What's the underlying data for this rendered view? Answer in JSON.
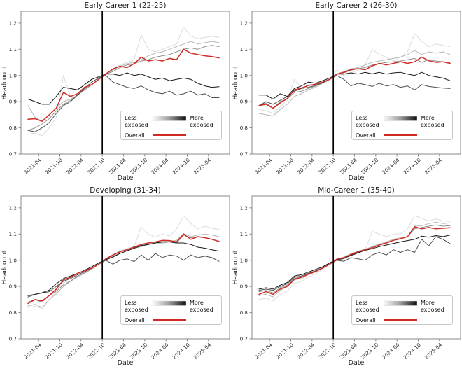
{
  "figure": {
    "background": "#ffffff",
    "description": "2x2 grid of headcount index line charts by AI-exposure quintile and age cohort"
  },
  "axes": {
    "xlabel": "Date",
    "ylabel": "Headcount",
    "yticks": [
      0.7,
      0.8,
      0.9,
      1.0,
      1.1,
      1.2
    ],
    "ylim": [
      0.7,
      1.245
    ],
    "xtick_labels": [
      "2021-04",
      "2021-10",
      "2022-04",
      "2022-10",
      "2023-04",
      "2023-10",
      "2024-04",
      "2024-10",
      "2025-04"
    ],
    "xtick_months": [
      3,
      9,
      15,
      21,
      27,
      33,
      39,
      45,
      51
    ],
    "x_months": [
      0,
      2,
      4,
      6,
      8,
      10,
      12,
      14,
      16,
      18,
      20,
      22,
      24,
      26,
      28,
      30,
      32,
      34,
      36,
      38,
      40,
      42,
      44,
      46,
      48,
      50,
      52,
      54
    ],
    "x_start": "2021-01",
    "x_end": "2025-07",
    "total_months": 54,
    "vline_month": 21,
    "vline_date": "2022-10",
    "grid": false,
    "legend_position": "lower right",
    "spine_color": "#8a8a8a",
    "tick_label_color": "#262626",
    "vline_color": "#000000"
  },
  "legend": {
    "less_line1": "Less",
    "less_line2": "exposed",
    "more_line1": "More",
    "more_line2": "exposed",
    "overall_label": "Overall",
    "gradient_from": "#fbfbfb",
    "gradient_mid": "#9a9a9a",
    "gradient_to": "#0d0d0d",
    "overall_color": "#cf2b24",
    "box_border": "#c9c9c9"
  },
  "chart_data": [
    {
      "type": "line",
      "id": "early-career-1",
      "title": "Early Career 1 (22-25)",
      "xlabel": "Date",
      "ylabel": "Headcount",
      "series": [
        {
          "id": "q1-least-exposed",
          "name": "Q1 least exposed",
          "color": "#dcdcdc",
          "width": 1,
          "values": [
            0.775,
            0.78,
            0.77,
            0.8,
            0.84,
            1.0,
            0.92,
            0.93,
            0.95,
            0.96,
            0.99,
            1.01,
            1.02,
            1.04,
            1.05,
            1.06,
            1.155,
            1.1,
            1.09,
            1.1,
            1.11,
            1.12,
            1.185,
            1.15,
            1.14,
            1.145,
            1.15,
            1.145
          ]
        },
        {
          "id": "q2",
          "name": "Q2",
          "color": "#b8b8b8",
          "width": 1,
          "values": [
            0.885,
            0.84,
            0.825,
            0.85,
            0.875,
            0.9,
            0.91,
            0.925,
            0.945,
            0.965,
            0.985,
            1.005,
            1.02,
            1.035,
            1.045,
            1.05,
            1.06,
            1.075,
            1.085,
            1.09,
            1.1,
            1.11,
            1.12,
            1.13,
            1.12,
            1.125,
            1.13,
            1.125
          ]
        },
        {
          "id": "q3",
          "name": "Q3",
          "color": "#909090",
          "width": 1,
          "values": [
            0.79,
            0.8,
            0.815,
            0.835,
            0.865,
            0.89,
            0.905,
            0.925,
            0.945,
            0.965,
            0.985,
            1.005,
            1.015,
            1.03,
            1.04,
            1.045,
            1.055,
            1.06,
            1.07,
            1.075,
            1.08,
            1.09,
            1.1,
            1.105,
            1.1,
            1.11,
            1.115,
            1.11
          ]
        },
        {
          "id": "q4",
          "name": "Q4",
          "color": "#4f4f4f",
          "width": 1,
          "values": [
            0.79,
            0.785,
            0.8,
            0.82,
            0.855,
            0.885,
            0.9,
            0.925,
            0.95,
            0.975,
            0.99,
            1.0,
            0.975,
            0.965,
            0.955,
            0.95,
            0.96,
            0.945,
            0.935,
            0.93,
            0.94,
            0.925,
            0.93,
            0.94,
            0.925,
            0.93,
            0.915,
            0.915
          ]
        },
        {
          "id": "q5-most-exposed",
          "name": "Q5 most exposed",
          "color": "#161616",
          "width": 1,
          "values": [
            0.91,
            0.9,
            0.89,
            0.89,
            0.92,
            0.955,
            0.95,
            0.945,
            0.965,
            0.985,
            0.995,
            1.005,
            1.005,
            1.0,
            1.01,
            1.0,
            1.005,
            0.995,
            0.985,
            0.99,
            0.98,
            0.985,
            0.99,
            0.985,
            0.97,
            0.96,
            0.955,
            0.957
          ]
        },
        {
          "id": "overall",
          "name": "Overall",
          "color": "#cf2b24",
          "width": 1.5,
          "values": [
            0.833,
            0.835,
            0.825,
            0.85,
            0.875,
            0.935,
            0.92,
            0.93,
            0.955,
            0.965,
            0.985,
            1.005,
            1.025,
            1.035,
            1.03,
            1.045,
            1.07,
            1.055,
            1.06,
            1.055,
            1.065,
            1.06,
            1.1,
            1.085,
            1.08,
            1.075,
            1.072,
            1.067
          ]
        }
      ]
    },
    {
      "type": "line",
      "id": "early-career-2",
      "title": "Early Career 2 (26-30)",
      "xlabel": "Date",
      "ylabel": "Headcount",
      "series": [
        {
          "id": "q1-least-exposed",
          "name": "Q1 least exposed",
          "color": "#dcdcdc",
          "width": 1,
          "values": [
            0.87,
            0.865,
            0.855,
            0.88,
            0.905,
            0.985,
            0.95,
            0.955,
            0.96,
            0.97,
            0.98,
            1.02,
            1.0,
            1.01,
            1.02,
            1.04,
            1.1,
            1.08,
            1.07,
            1.055,
            1.07,
            1.09,
            1.16,
            1.13,
            1.11,
            1.12,
            1.115,
            1.11
          ]
        },
        {
          "id": "q2",
          "name": "Q2",
          "color": "#b8b8b8",
          "width": 1,
          "values": [
            0.855,
            0.85,
            0.845,
            0.87,
            0.89,
            0.92,
            0.93,
            0.945,
            0.955,
            0.97,
            0.985,
            1.005,
            1.015,
            1.025,
            1.03,
            1.04,
            1.05,
            1.055,
            1.06,
            1.065,
            1.07,
            1.08,
            1.095,
            1.08,
            1.09,
            1.085,
            1.09,
            1.08
          ]
        },
        {
          "id": "q3",
          "name": "Q3",
          "color": "#909090",
          "width": 1,
          "values": [
            0.885,
            0.895,
            0.875,
            0.9,
            0.91,
            0.935,
            0.94,
            0.95,
            0.96,
            0.972,
            0.985,
            1.005,
            1.01,
            1.02,
            1.025,
            1.03,
            1.04,
            1.045,
            1.05,
            1.052,
            1.055,
            1.06,
            1.065,
            1.05,
            1.06,
            1.055,
            1.052,
            1.048
          ]
        },
        {
          "id": "q4",
          "name": "Q4",
          "color": "#4f4f4f",
          "width": 1,
          "values": [
            0.885,
            0.9,
            0.89,
            0.905,
            0.92,
            0.94,
            0.95,
            0.955,
            0.962,
            0.972,
            0.985,
            1.0,
            0.985,
            0.96,
            0.97,
            0.965,
            0.958,
            0.97,
            0.96,
            0.965,
            0.955,
            0.96,
            0.945,
            0.965,
            0.958,
            0.955,
            0.952,
            0.95
          ]
        },
        {
          "id": "q5-most-exposed",
          "name": "Q5 most exposed",
          "color": "#161616",
          "width": 1,
          "values": [
            0.925,
            0.925,
            0.91,
            0.93,
            0.92,
            0.95,
            0.96,
            0.975,
            0.97,
            0.98,
            0.99,
            1.005,
            1.005,
            1.01,
            1.005,
            1.012,
            1.006,
            1.012,
            1.005,
            1.01,
            1.012,
            1.005,
            1.0,
            1.012,
            1.0,
            0.995,
            0.99,
            0.98
          ]
        },
        {
          "id": "overall",
          "name": "Overall",
          "color": "#cf2b24",
          "width": 1.5,
          "values": [
            0.885,
            0.89,
            0.875,
            0.895,
            0.912,
            0.945,
            0.952,
            0.962,
            0.966,
            0.975,
            0.985,
            1.005,
            1.012,
            1.022,
            1.026,
            1.022,
            1.036,
            1.046,
            1.04,
            1.046,
            1.052,
            1.046,
            1.052,
            1.07,
            1.056,
            1.05,
            1.052,
            1.046
          ]
        }
      ]
    },
    {
      "type": "line",
      "id": "developing",
      "title": "Developing (31-34)",
      "xlabel": "Date",
      "ylabel": "Headcount",
      "series": [
        {
          "id": "q1-least-exposed",
          "name": "Q1 least exposed",
          "color": "#dcdcdc",
          "width": 1,
          "values": [
            0.82,
            0.825,
            0.815,
            0.85,
            0.88,
            0.915,
            0.92,
            0.94,
            0.955,
            0.97,
            0.985,
            1.008,
            1.02,
            1.032,
            1.045,
            1.052,
            1.128,
            1.1,
            1.088,
            1.1,
            1.092,
            1.12,
            1.17,
            1.14,
            1.12,
            1.13,
            1.122,
            1.118
          ]
        },
        {
          "id": "q2",
          "name": "Q2",
          "color": "#b8b8b8",
          "width": 1,
          "values": [
            0.825,
            0.832,
            0.82,
            0.85,
            0.872,
            0.9,
            0.92,
            0.936,
            0.95,
            0.966,
            0.985,
            1.006,
            1.02,
            1.035,
            1.042,
            1.052,
            1.058,
            1.062,
            1.066,
            1.072,
            1.072,
            1.076,
            1.102,
            1.09,
            1.096,
            1.1,
            1.096,
            1.09
          ]
        },
        {
          "id": "q3",
          "name": "Q3",
          "color": "#909090",
          "width": 1,
          "values": [
            0.84,
            0.85,
            0.84,
            0.865,
            0.882,
            0.906,
            0.92,
            0.94,
            0.952,
            0.966,
            0.985,
            1.002,
            1.016,
            1.026,
            1.036,
            1.046,
            1.052,
            1.06,
            1.066,
            1.066,
            1.07,
            1.066,
            1.096,
            1.086,
            1.09,
            1.086,
            1.08,
            1.072
          ]
        },
        {
          "id": "q4",
          "name": "Q4",
          "color": "#4f4f4f",
          "width": 1,
          "values": [
            0.86,
            0.87,
            0.875,
            0.88,
            0.9,
            0.92,
            0.93,
            0.945,
            0.956,
            0.97,
            0.985,
            1.0,
            0.985,
            1.0,
            1.005,
            0.995,
            1.02,
            1.0,
            1.026,
            1.01,
            1.02,
            1.016,
            1.0,
            1.02,
            1.01,
            1.016,
            1.01,
            0.996
          ]
        },
        {
          "id": "q5-most-exposed",
          "name": "Q5 most exposed",
          "color": "#161616",
          "width": 1,
          "values": [
            0.865,
            0.87,
            0.876,
            0.886,
            0.91,
            0.93,
            0.94,
            0.95,
            0.962,
            0.975,
            0.99,
            1.002,
            1.012,
            1.026,
            1.036,
            1.046,
            1.056,
            1.06,
            1.066,
            1.07,
            1.07,
            1.066,
            1.066,
            1.06,
            1.05,
            1.046,
            1.04,
            1.035
          ]
        },
        {
          "id": "overall",
          "name": "Overall",
          "color": "#cf2b24",
          "width": 1.5,
          "values": [
            0.835,
            0.85,
            0.845,
            0.865,
            0.89,
            0.925,
            0.935,
            0.95,
            0.96,
            0.97,
            0.985,
            1.005,
            1.02,
            1.032,
            1.04,
            1.05,
            1.06,
            1.066,
            1.07,
            1.076,
            1.075,
            1.07,
            1.1,
            1.08,
            1.09,
            1.086,
            1.08,
            1.072
          ]
        }
      ]
    },
    {
      "type": "line",
      "id": "mid-career-1",
      "title": "Mid-Career 1 (35-40)",
      "xlabel": "Date",
      "ylabel": "Headcount",
      "series": [
        {
          "id": "q1-least-exposed",
          "name": "Q1 least exposed",
          "color": "#dcdcdc",
          "width": 1,
          "values": [
            0.85,
            0.855,
            0.845,
            0.87,
            0.882,
            0.912,
            0.92,
            0.936,
            0.95,
            0.965,
            0.985,
            1.005,
            1.01,
            1.02,
            1.032,
            1.04,
            1.11,
            1.1,
            1.09,
            1.1,
            1.1,
            1.12,
            1.17,
            1.16,
            1.15,
            1.158,
            1.15,
            1.148
          ]
        },
        {
          "id": "q2",
          "name": "Q2",
          "color": "#b8b8b8",
          "width": 1,
          "values": [
            0.865,
            0.87,
            0.86,
            0.885,
            0.9,
            0.925,
            0.93,
            0.945,
            0.956,
            0.97,
            0.985,
            1.005,
            1.012,
            1.025,
            1.035,
            1.042,
            1.052,
            1.062,
            1.07,
            1.08,
            1.086,
            1.09,
            1.13,
            1.132,
            1.14,
            1.145,
            1.14,
            1.143
          ]
        },
        {
          "id": "q3",
          "name": "Q3",
          "color": "#909090",
          "width": 1,
          "values": [
            0.88,
            0.885,
            0.875,
            0.895,
            0.905,
            0.93,
            0.94,
            0.95,
            0.96,
            0.972,
            0.99,
            1.0,
            1.006,
            1.02,
            1.03,
            1.038,
            1.048,
            1.058,
            1.066,
            1.076,
            1.082,
            1.09,
            1.12,
            1.125,
            1.13,
            1.135,
            1.13,
            1.132
          ]
        },
        {
          "id": "q4",
          "name": "Q4",
          "color": "#4f4f4f",
          "width": 1,
          "values": [
            0.885,
            0.89,
            0.885,
            0.9,
            0.91,
            0.935,
            0.94,
            0.95,
            0.96,
            0.97,
            0.985,
            1.0,
            0.996,
            1.01,
            1.005,
            1.0,
            1.02,
            1.03,
            1.02,
            1.04,
            1.03,
            1.04,
            1.03,
            1.08,
            1.055,
            1.09,
            1.08,
            1.063
          ]
        },
        {
          "id": "q5-most-exposed",
          "name": "Q5 most exposed",
          "color": "#161616",
          "width": 1,
          "values": [
            0.89,
            0.895,
            0.89,
            0.905,
            0.915,
            0.94,
            0.945,
            0.955,
            0.965,
            0.975,
            0.99,
            1.002,
            1.008,
            1.018,
            1.028,
            1.038,
            1.044,
            1.052,
            1.058,
            1.064,
            1.07,
            1.075,
            1.08,
            1.092,
            1.088,
            1.094,
            1.09,
            1.096
          ]
        },
        {
          "id": "overall",
          "name": "Overall",
          "color": "#cf2b24",
          "width": 1.5,
          "values": [
            0.87,
            0.88,
            0.87,
            0.89,
            0.9,
            0.927,
            0.935,
            0.947,
            0.957,
            0.97,
            0.985,
            1.004,
            1.01,
            1.022,
            1.032,
            1.04,
            1.048,
            1.058,
            1.066,
            1.076,
            1.082,
            1.09,
            1.128,
            1.12,
            1.125,
            1.12,
            1.122,
            1.124
          ]
        }
      ]
    }
  ]
}
